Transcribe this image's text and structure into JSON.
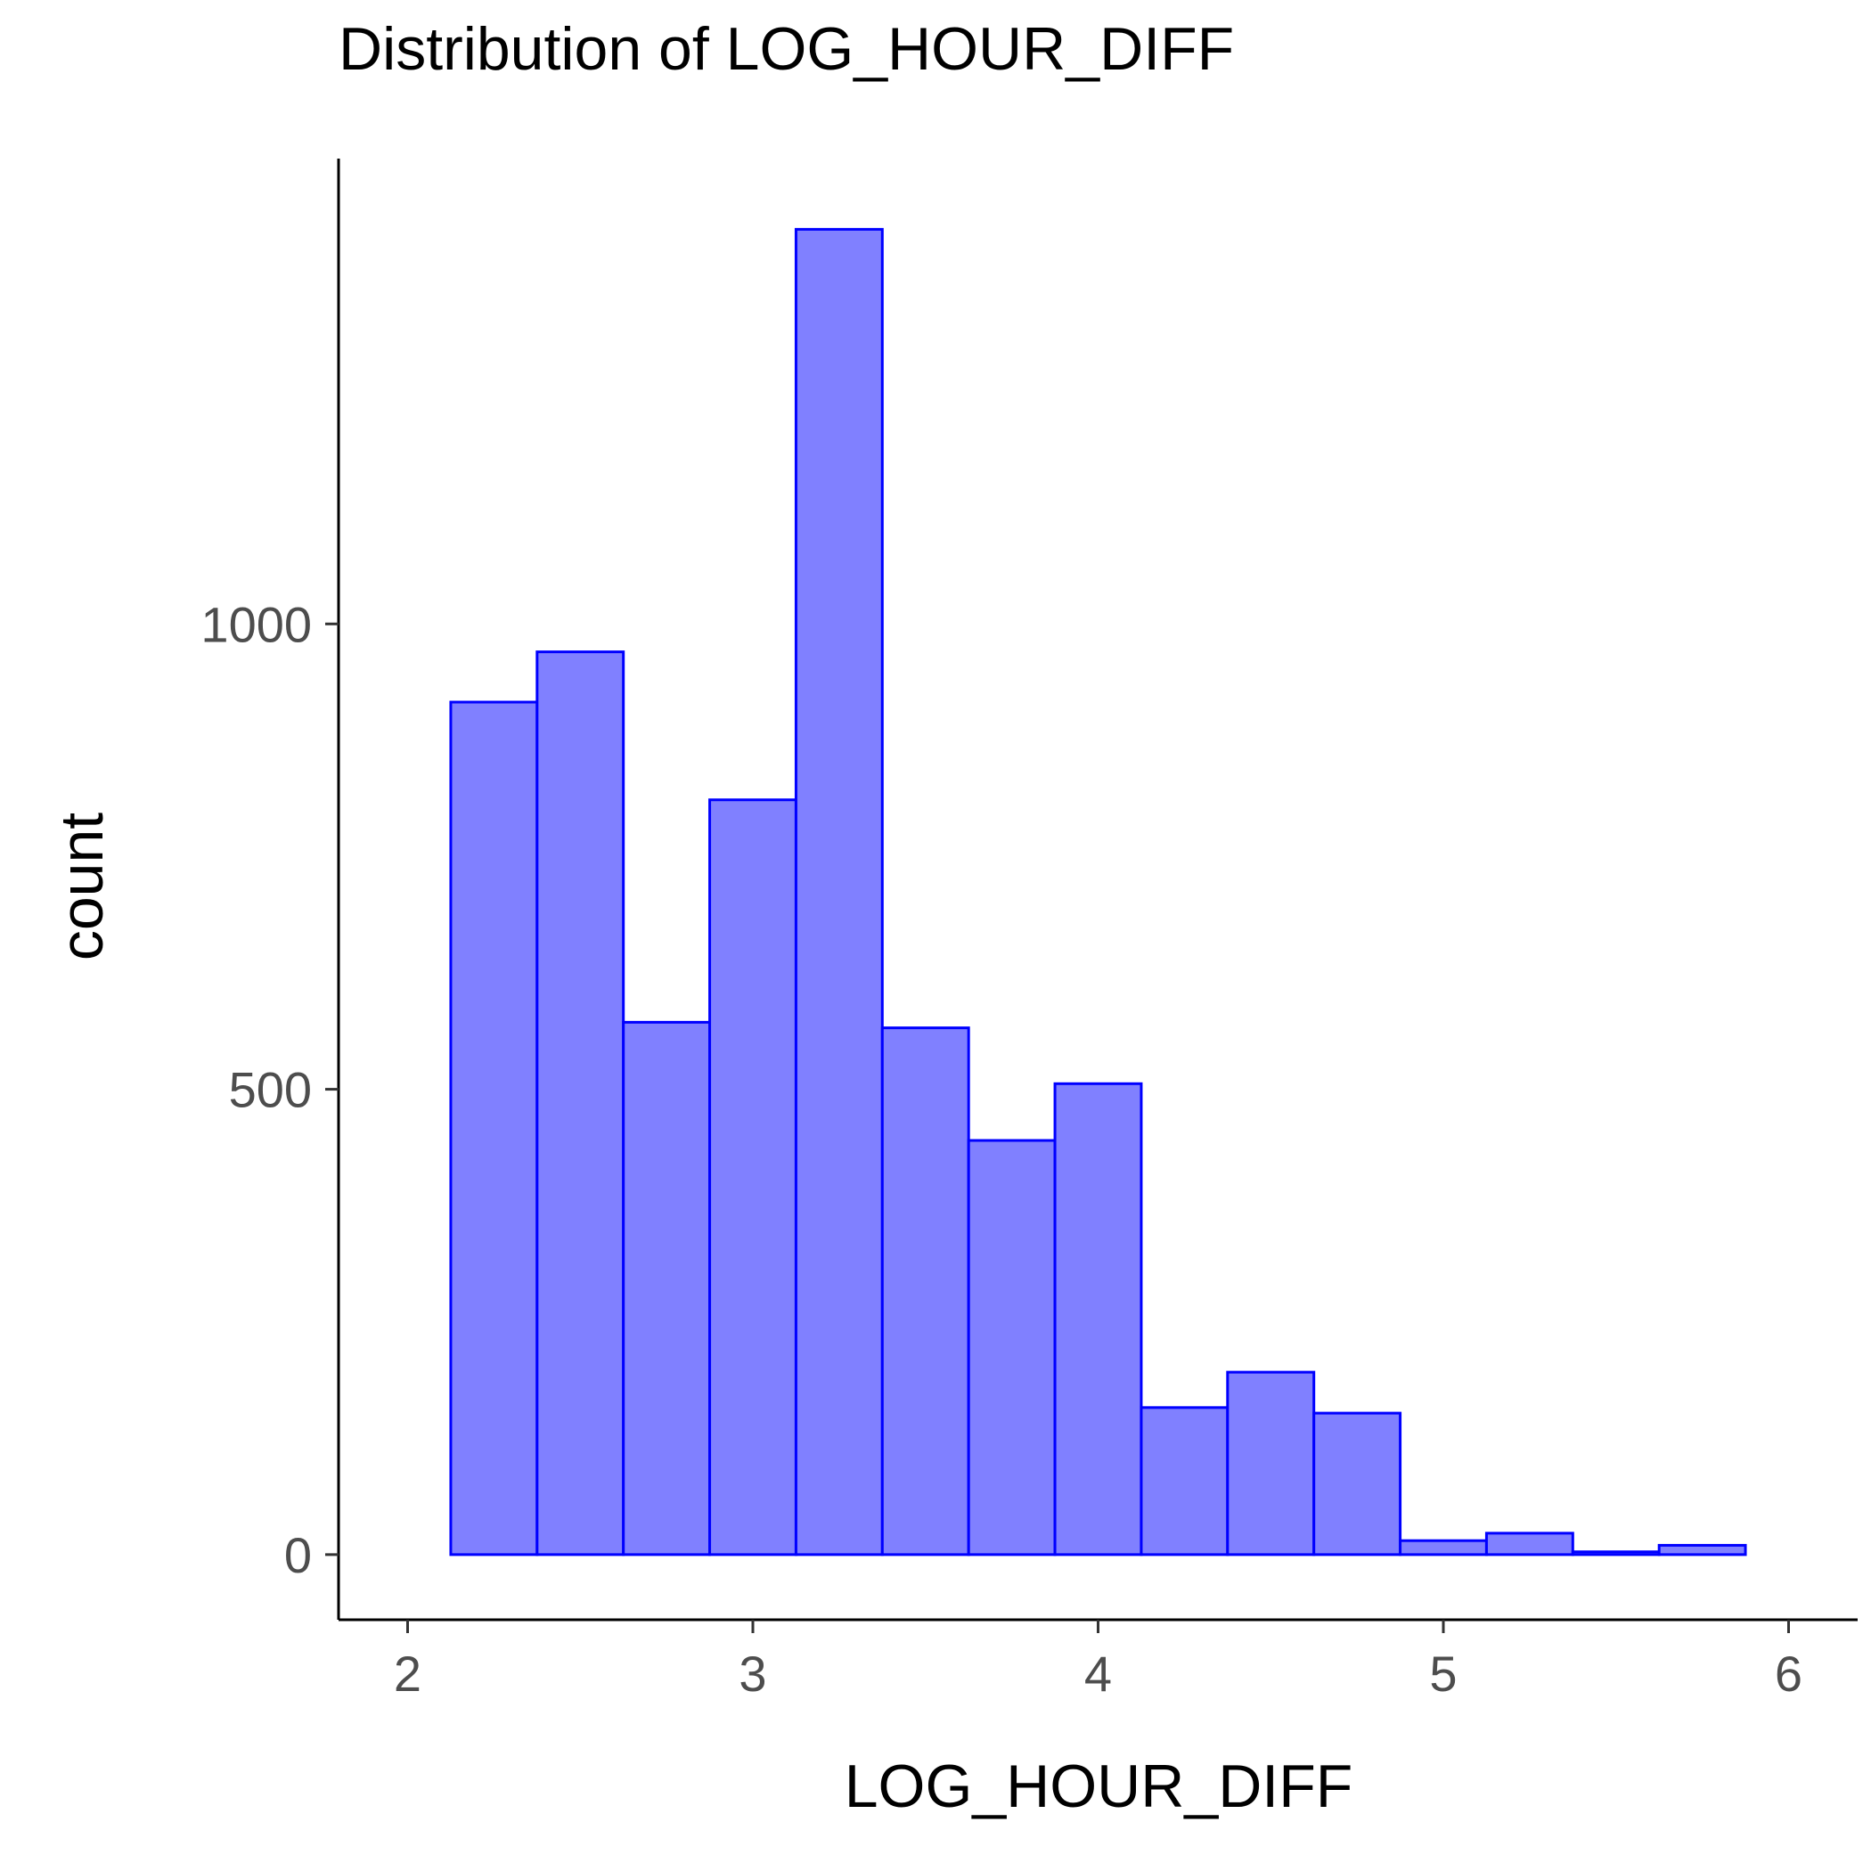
{
  "chart_data": {
    "type": "bar",
    "title": "Distribution of LOG_HOUR_DIFF",
    "xlabel": "LOG_HOUR_DIFF",
    "ylabel": "count",
    "xlim": [
      1.8,
      6.2
    ],
    "ylim": [
      -70,
      1500
    ],
    "x_ticks": [
      2,
      3,
      4,
      5,
      6
    ],
    "y_ticks": [
      0,
      500,
      1000
    ],
    "bin_width": 0.25,
    "bins": [
      {
        "x_start": 2.125,
        "x_end": 2.375,
        "count": 916
      },
      {
        "x_start": 2.375,
        "x_end": 2.625,
        "count": 970
      },
      {
        "x_start": 2.625,
        "x_end": 2.875,
        "count": 572
      },
      {
        "x_start": 2.875,
        "x_end": 3.125,
        "count": 811
      },
      {
        "x_start": 3.125,
        "x_end": 3.375,
        "count": 1424
      },
      {
        "x_start": 3.375,
        "x_end": 3.625,
        "count": 566
      },
      {
        "x_start": 3.625,
        "x_end": 3.875,
        "count": 445
      },
      {
        "x_start": 3.875,
        "x_end": 4.125,
        "count": 506
      },
      {
        "x_start": 4.125,
        "x_end": 4.375,
        "count": 158
      },
      {
        "x_start": 4.375,
        "x_end": 4.625,
        "count": 196
      },
      {
        "x_start": 4.625,
        "x_end": 4.875,
        "count": 152
      },
      {
        "x_start": 4.875,
        "x_end": 5.125,
        "count": 15
      },
      {
        "x_start": 5.125,
        "x_end": 5.375,
        "count": 23
      },
      {
        "x_start": 5.375,
        "x_end": 5.625,
        "count": 3
      },
      {
        "x_start": 5.625,
        "x_end": 5.875,
        "count": 10
      }
    ],
    "grid": false,
    "legend": "none",
    "colors": {
      "fill": "#8080ff",
      "stroke": "#0000ff"
    }
  }
}
